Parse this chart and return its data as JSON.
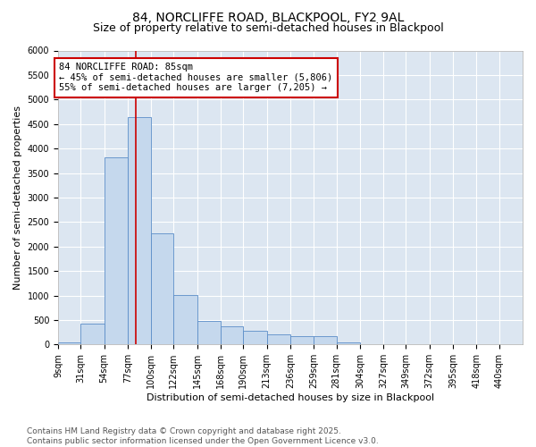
{
  "title_line1": "84, NORCLIFFE ROAD, BLACKPOOL, FY2 9AL",
  "title_line2": "Size of property relative to semi-detached houses in Blackpool",
  "xlabel": "Distribution of semi-detached houses by size in Blackpool",
  "ylabel": "Number of semi-detached properties",
  "bar_color": "#c5d8ed",
  "bar_edgecolor": "#5b8dc8",
  "bg_color": "#dce6f1",
  "grid_color": "#ffffff",
  "annotation_text": "84 NORCLIFFE ROAD: 85sqm\n← 45% of semi-detached houses are smaller (5,806)\n55% of semi-detached houses are larger (7,205) →",
  "vline_x": 85,
  "bins": [
    9,
    31,
    54,
    77,
    100,
    122,
    145,
    168,
    190,
    213,
    236,
    259,
    281,
    304,
    327,
    349,
    372,
    395,
    418,
    440,
    463
  ],
  "bar_heights": [
    50,
    430,
    3820,
    4640,
    2260,
    1010,
    480,
    380,
    280,
    200,
    170,
    170,
    50,
    10,
    10,
    5,
    5,
    5,
    5,
    5
  ],
  "ylim": [
    0,
    6000
  ],
  "yticks": [
    0,
    500,
    1000,
    1500,
    2000,
    2500,
    3000,
    3500,
    4000,
    4500,
    5000,
    5500,
    6000
  ],
  "footnote": "Contains HM Land Registry data © Crown copyright and database right 2025.\nContains public sector information licensed under the Open Government Licence v3.0.",
  "annotation_box_facecolor": "#ffffff",
  "annotation_box_edgecolor": "#cc0000",
  "vline_color": "#cc0000",
  "title_fontsize": 10,
  "subtitle_fontsize": 9,
  "axis_label_fontsize": 8,
  "tick_fontsize": 7,
  "annotation_fontsize": 7.5,
  "footnote_fontsize": 6.5
}
